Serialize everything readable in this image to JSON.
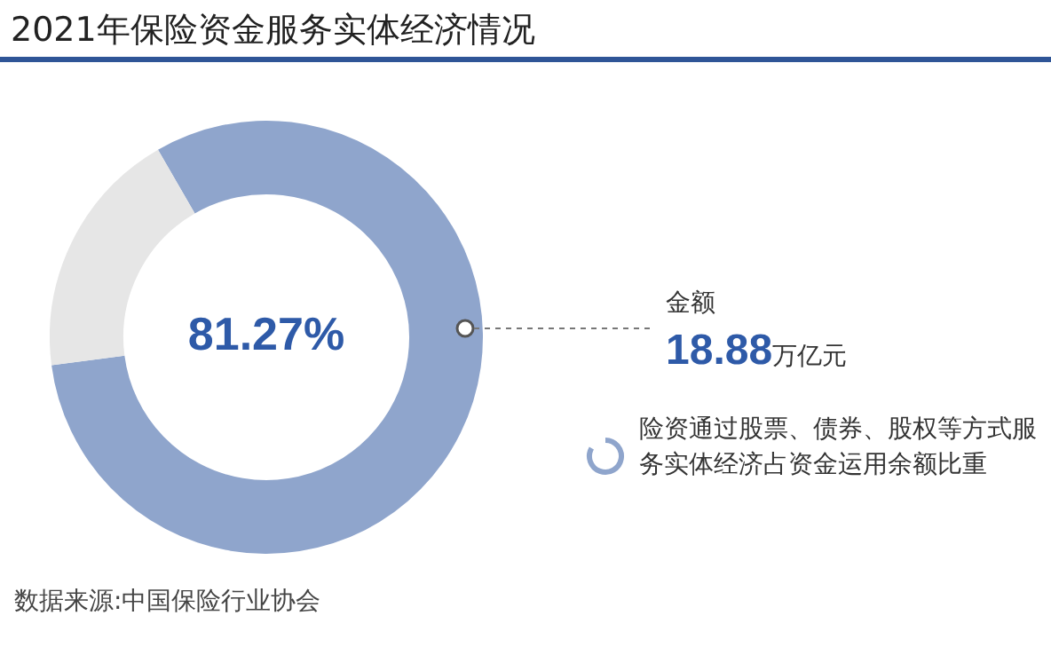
{
  "chart_data": {
    "type": "donut",
    "title": "2021年保险资金服务实体经济情况",
    "categories": [
      null,
      null
    ],
    "values": [
      81.27,
      18.73
    ],
    "colors": [
      "#8fa5cc",
      "#e6e6e6"
    ],
    "value_labels": [
      "81.27%",
      null
    ],
    "legend": false,
    "annotations": [
      "金额",
      "18.88万亿元",
      "险资通过股票、债券、股权等方式服务实体经济占资金运用余额比重",
      "数据来源:中国保险行业协会"
    ]
  }
}
